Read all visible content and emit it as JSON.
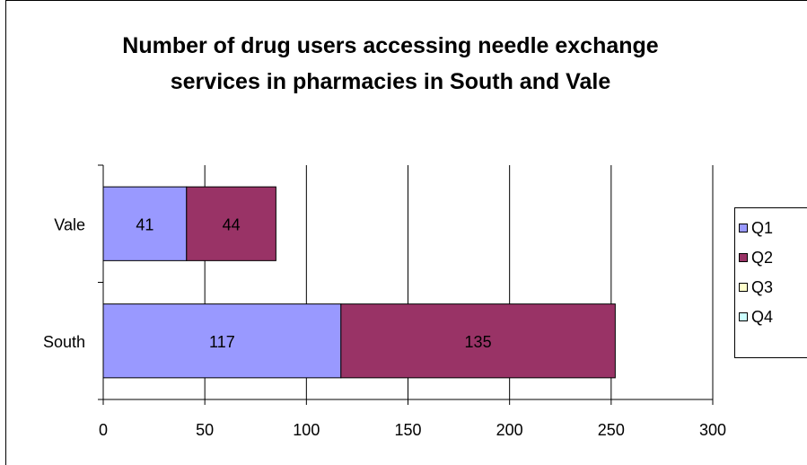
{
  "chart_data": {
    "type": "bar",
    "orientation": "horizontal",
    "stacked": true,
    "title": "Number of drug users accessing needle exchange services in pharmacies in South and Vale",
    "categories": [
      "Vale",
      "South"
    ],
    "series": [
      {
        "name": "Q1",
        "color": "#9999ff",
        "values": [
          41,
          117
        ]
      },
      {
        "name": "Q2",
        "color": "#993366",
        "values": [
          44,
          135
        ]
      },
      {
        "name": "Q3",
        "color": "#ffffcc",
        "values": [
          0,
          0
        ]
      },
      {
        "name": "Q4",
        "color": "#ccffff",
        "values": [
          0,
          0
        ]
      }
    ],
    "xlim": [
      0,
      300
    ],
    "xticks": [
      0,
      50,
      100,
      150,
      200,
      250,
      300
    ],
    "xlabel": "",
    "ylabel": "",
    "grid": "vertical",
    "legend_position": "right"
  }
}
